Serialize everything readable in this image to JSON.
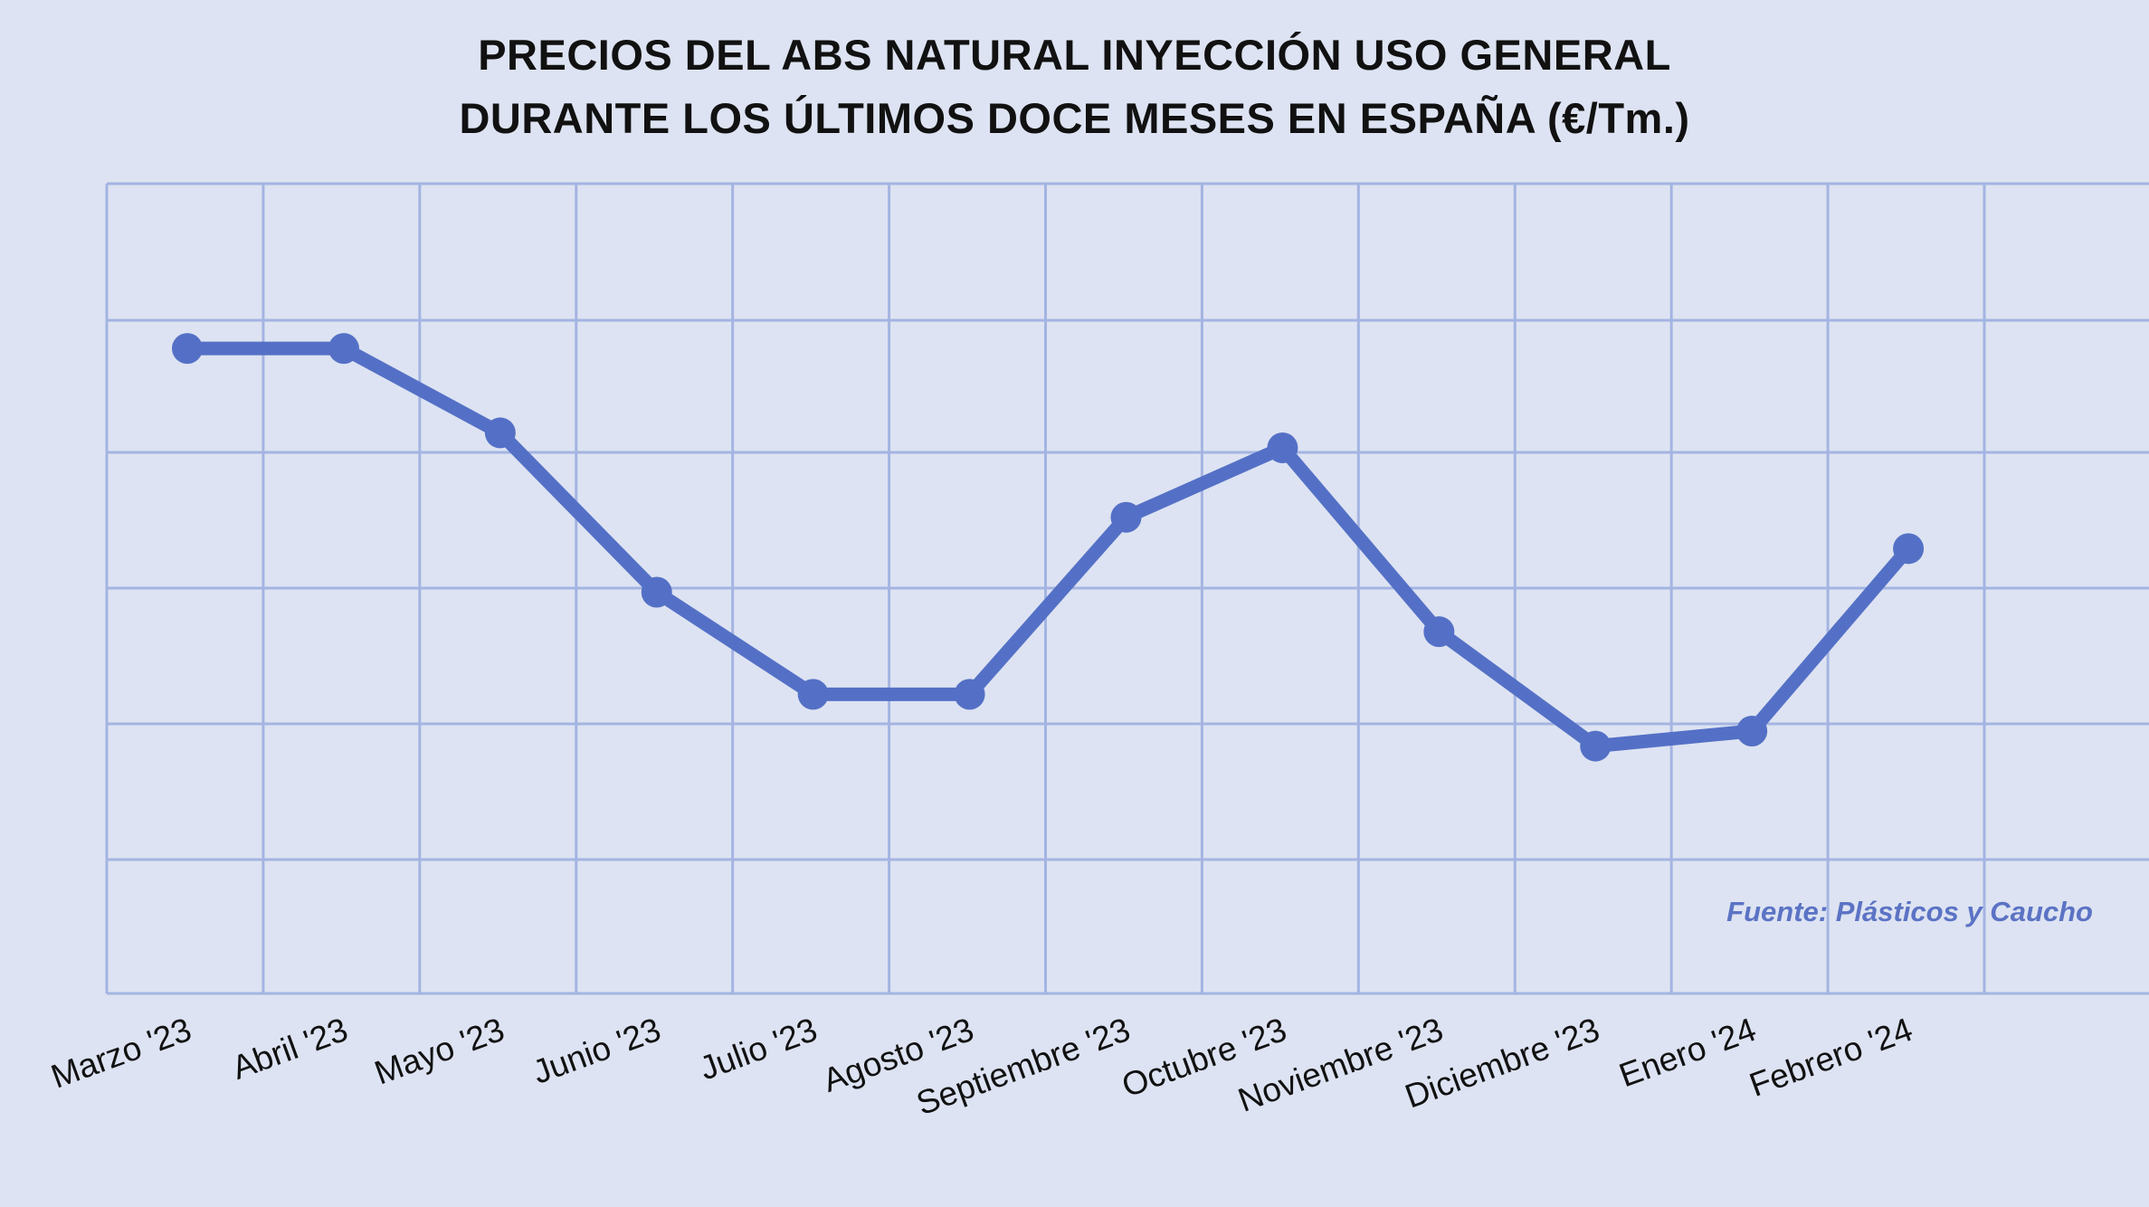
{
  "chart_data": {
    "type": "line",
    "title": [
      "PRECIOS DEL ABS NATURAL INYECCIÓN USO GENERAL",
      "DURANTE LOS ÚLTIMOS DOCE MESES EN ESPAÑA (€/Tm.)"
    ],
    "xlabel": "",
    "ylabel": "",
    "categories": [
      "Marzo '23",
      "Abril '23",
      "Mayo '23",
      "Junio '23",
      "Julio '23",
      "Agosto '23",
      "Septiembre '23",
      "Octubre '23",
      "Noviembre '23",
      "Diciembre '23",
      "Enero '24",
      "Febrero '24"
    ],
    "series": [
      {
        "values": [
          3.78,
          3.78,
          3.16,
          1.99,
          1.24,
          1.24,
          2.54,
          3.05,
          1.7,
          0.86,
          0.97,
          2.31
        ],
        "color": "#5470c6"
      }
    ],
    "ylim": [
      -3,
      5
    ],
    "y_tick_labels_visible": false,
    "grid": true,
    "source": "Fuente: Plásticos y Caucho"
  }
}
